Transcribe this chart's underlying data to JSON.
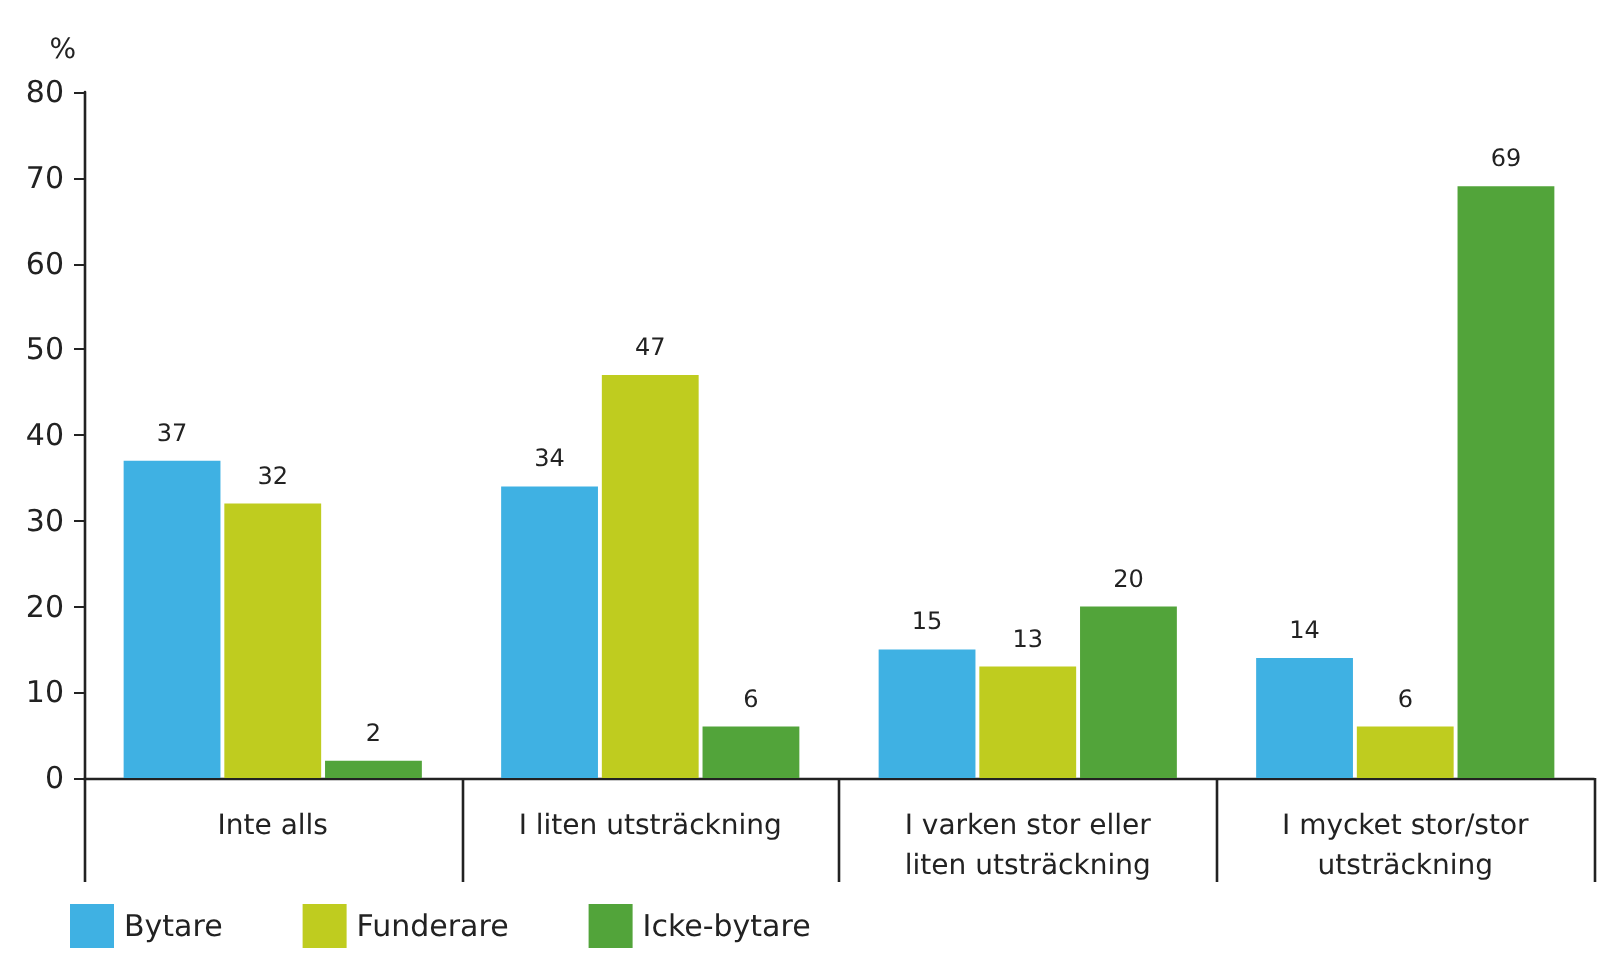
{
  "chart_data": {
    "type": "bar",
    "ylabel": "%",
    "categories": [
      "Inte alls",
      "I liten utsträckning",
      "I varken stor eller\nliten utsträckning",
      "I mycket stor/stor\nutsträckning"
    ],
    "series": [
      {
        "name": "Bytare",
        "color": "#3fb1e3",
        "values": [
          37,
          34,
          15,
          14
        ]
      },
      {
        "name": "Funderare",
        "color": "#bfcc1f",
        "values": [
          32,
          47,
          13,
          6
        ]
      },
      {
        "name": "Icke-bytare",
        "color": "#52a43a",
        "values": [
          2,
          6,
          20,
          69
        ]
      }
    ],
    "ylim": [
      0,
      80
    ],
    "yticks": [
      0,
      10,
      20,
      30,
      40,
      50,
      60,
      70,
      80
    ],
    "data_labels": true,
    "grid": false,
    "legend": "bottom left"
  }
}
